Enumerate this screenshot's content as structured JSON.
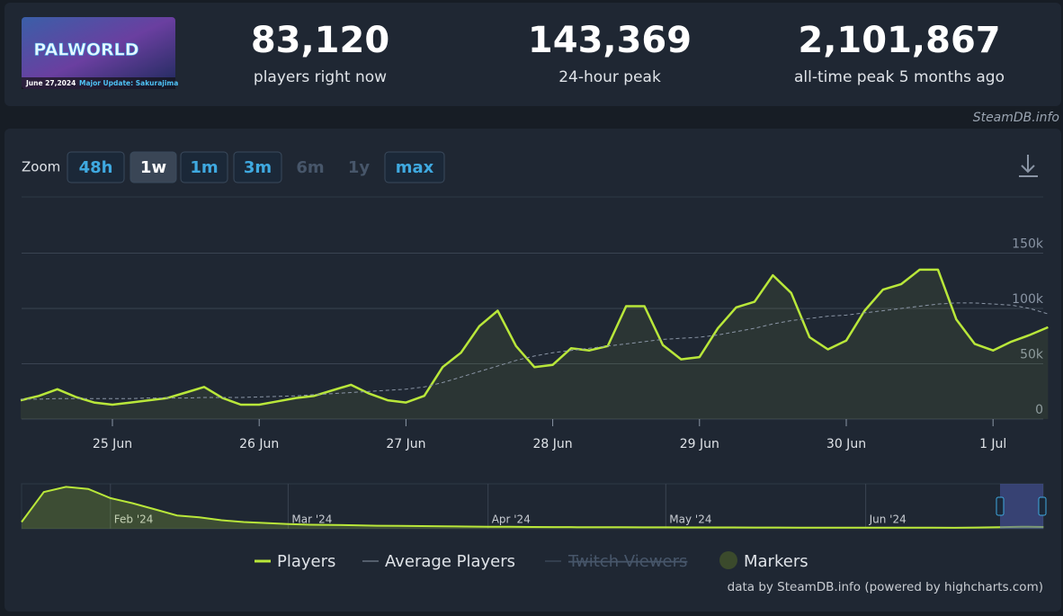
{
  "header": {
    "logo": {
      "title": "PALWORLD",
      "caption_date": "June 27,2024",
      "caption_text": "Major Update: Sakurajima"
    },
    "stats": [
      {
        "value": "83,120",
        "label": "players right now"
      },
      {
        "value": "143,369",
        "label": "24-hour peak"
      },
      {
        "value": "2,101,867",
        "label": "all-time peak 5 months ago"
      }
    ]
  },
  "watermark": "SteamDB.info",
  "zoom": {
    "label": "Zoom",
    "buttons": [
      "48h",
      "1w",
      "1m",
      "3m",
      "6m",
      "1y",
      "max"
    ],
    "active": "1w",
    "disabled": [
      "6m",
      "1y"
    ]
  },
  "chart_data": [
    {
      "type": "line",
      "categories": [
        null,
        null,
        null,
        null,
        null,
        "25 Jun",
        null,
        null,
        null,
        null,
        null,
        null,
        null,
        "26 Jun",
        null,
        null,
        null,
        null,
        null,
        null,
        null,
        "27 Jun",
        null,
        null,
        null,
        null,
        null,
        null,
        null,
        "28 Jun",
        null,
        null,
        null,
        null,
        null,
        null,
        null,
        "29 Jun",
        null,
        null,
        null,
        null,
        null,
        null,
        null,
        "30 Jun",
        null,
        null,
        null,
        null,
        null,
        null,
        null,
        "1 Jul",
        null,
        null,
        null
      ],
      "series": [
        {
          "name": "Players",
          "color": "#b9e73a",
          "values": [
            17000,
            21000,
            27000,
            20000,
            15000,
            13000,
            15000,
            17000,
            19000,
            24000,
            29000,
            19000,
            13000,
            13000,
            16000,
            19000,
            21000,
            26000,
            31000,
            23000,
            17000,
            15000,
            21000,
            47000,
            60000,
            84000,
            98000,
            66000,
            47000,
            49000,
            64000,
            62000,
            66000,
            102000,
            102000,
            67000,
            54000,
            56000,
            82000,
            101000,
            106000,
            130000,
            114000,
            74000,
            63000,
            71000,
            98000,
            117000,
            122000,
            135000,
            135000,
            90000,
            68000,
            62000,
            70000,
            76000,
            83000
          ]
        },
        {
          "name": "Average Players",
          "color": "#8a95a5",
          "dashed": true,
          "values": [
            18000,
            18000,
            18500,
            18500,
            18500,
            18500,
            18500,
            19000,
            19000,
            19000,
            19500,
            19500,
            19500,
            20000,
            20500,
            21000,
            22000,
            23000,
            24000,
            25000,
            26000,
            27000,
            29000,
            33000,
            38000,
            43000,
            48000,
            53000,
            57000,
            60000,
            62000,
            64000,
            66000,
            68000,
            70000,
            72000,
            73000,
            74000,
            76000,
            79000,
            82000,
            86000,
            89000,
            91000,
            93000,
            94000,
            96000,
            98000,
            100000,
            102000,
            104000,
            105000,
            105000,
            104000,
            103000,
            100000,
            95000
          ]
        }
      ],
      "ylim": [
        0,
        200000
      ],
      "yticks": [
        0,
        {
          "value": 50000,
          "label": "50k"
        },
        {
          "value": 100000,
          "label": "100k"
        },
        {
          "value": 150000,
          "label": "150k"
        }
      ],
      "grid": true
    },
    {
      "type": "area",
      "categories": [
        null,
        null,
        null,
        null,
        "Feb '24",
        null,
        null,
        null,
        null,
        null,
        null,
        null,
        "Mar '24",
        null,
        null,
        null,
        null,
        null,
        null,
        null,
        null,
        "Apr '24",
        null,
        null,
        null,
        null,
        null,
        null,
        null,
        "May '24",
        null,
        null,
        null,
        null,
        null,
        null,
        null,
        null,
        "Jun '24",
        null,
        null,
        null,
        null,
        null,
        null,
        null,
        null
      ],
      "series": [
        {
          "color": "#b9e73a",
          "values": [
            330000,
            1800000,
            2050000,
            1950000,
            1500000,
            1250000,
            950000,
            650000,
            560000,
            420000,
            330000,
            280000,
            230000,
            200000,
            190000,
            170000,
            150000,
            140000,
            130000,
            120000,
            110000,
            100000,
            95000,
            90000,
            85000,
            80000,
            78000,
            75000,
            72000,
            70000,
            68000,
            66000,
            64000,
            62000,
            60000,
            58000,
            56000,
            55000,
            54000,
            53000,
            52000,
            51000,
            50000,
            60000,
            80000,
            100000,
            90000
          ]
        }
      ],
      "ylim": [
        0,
        2200000
      ]
    }
  ],
  "legend_extra": [
    {
      "name": "Twitch Viewers",
      "hidden": true
    },
    {
      "name": "Markers",
      "color": "#3b4a2c"
    }
  ],
  "credits": "data by SteamDB.info (powered by highcharts.com)"
}
